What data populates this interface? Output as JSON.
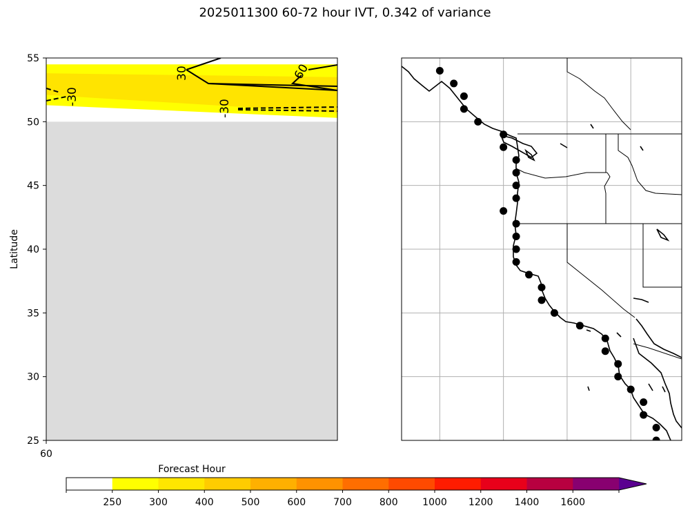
{
  "figure": {
    "title": "2025011300 60-72 hour IVT, 0.342 of variance"
  },
  "chart_data": [
    {
      "type": "contour",
      "panel": "left",
      "xlabel": "",
      "ylabel": "Latitude",
      "x_ticks": [
        "60"
      ],
      "y_ticks": [
        25,
        30,
        35,
        40,
        45,
        50,
        55
      ],
      "ylim": [
        25,
        55
      ],
      "missing_region_color": "#dcdcdc",
      "missing_region_lat": [
        25,
        50
      ],
      "fill_bands": [
        {
          "level": "250-300",
          "color": "#ffff00",
          "lat_range": [
            50.3,
            54.5
          ]
        },
        {
          "level": "300-400",
          "color": "#ffe400",
          "lat_range": [
            51.3,
            53.8
          ]
        }
      ],
      "contour_labels": [
        {
          "text": "30",
          "style": "solid"
        },
        {
          "text": "60",
          "style": "solid"
        },
        {
          "text": "-30",
          "style": "dashed"
        },
        {
          "text": "-30",
          "style": "dashed"
        }
      ]
    },
    {
      "type": "map",
      "panel": "right",
      "description_lon_range": [
        -134,
        -112
      ],
      "lat_range": [
        25,
        55
      ],
      "points": [
        {
          "lon": -131.0,
          "lat": 54.0
        },
        {
          "lon": -129.9,
          "lat": 53.0
        },
        {
          "lon": -129.1,
          "lat": 52.0
        },
        {
          "lon": -129.1,
          "lat": 51.0
        },
        {
          "lon": -128.0,
          "lat": 50.0
        },
        {
          "lon": -126.0,
          "lat": 49.0
        },
        {
          "lon": -126.0,
          "lat": 48.0
        },
        {
          "lon": -125.0,
          "lat": 47.0
        },
        {
          "lon": -125.0,
          "lat": 46.0
        },
        {
          "lon": -125.0,
          "lat": 45.0
        },
        {
          "lon": -125.0,
          "lat": 44.0
        },
        {
          "lon": -126.0,
          "lat": 43.0
        },
        {
          "lon": -125.0,
          "lat": 42.0
        },
        {
          "lon": -125.0,
          "lat": 41.0
        },
        {
          "lon": -125.0,
          "lat": 40.0
        },
        {
          "lon": -125.0,
          "lat": 39.0
        },
        {
          "lon": -124.0,
          "lat": 38.0
        },
        {
          "lon": -123.0,
          "lat": 37.0
        },
        {
          "lon": -123.0,
          "lat": 36.0
        },
        {
          "lon": -122.0,
          "lat": 35.0
        },
        {
          "lon": -120.0,
          "lat": 34.0
        },
        {
          "lon": -118.0,
          "lat": 33.0
        },
        {
          "lon": -118.0,
          "lat": 32.0
        },
        {
          "lon": -117.0,
          "lat": 31.0
        },
        {
          "lon": -117.0,
          "lat": 30.0
        },
        {
          "lon": -116.0,
          "lat": 29.0
        },
        {
          "lon": -115.0,
          "lat": 28.0
        },
        {
          "lon": -115.0,
          "lat": 27.0
        },
        {
          "lon": -114.0,
          "lat": 26.0
        },
        {
          "lon": -114.0,
          "lat": 25.0
        }
      ],
      "grid": true
    },
    {
      "type": "colorbar",
      "title": "Forecast Hour",
      "levels": [
        "250",
        "300",
        "400",
        "500",
        "600",
        "700",
        "800",
        "1000",
        "1200",
        "1400",
        "1600"
      ],
      "colors": [
        "#ffffff",
        "#ffff00",
        "#ffe600",
        "#ffcc00",
        "#ffb000",
        "#ff9200",
        "#ff6e00",
        "#ff4a00",
        "#ff1c00",
        "#e8001a",
        "#b80040",
        "#880070",
        "#5a0090"
      ],
      "extend": "max"
    }
  ]
}
